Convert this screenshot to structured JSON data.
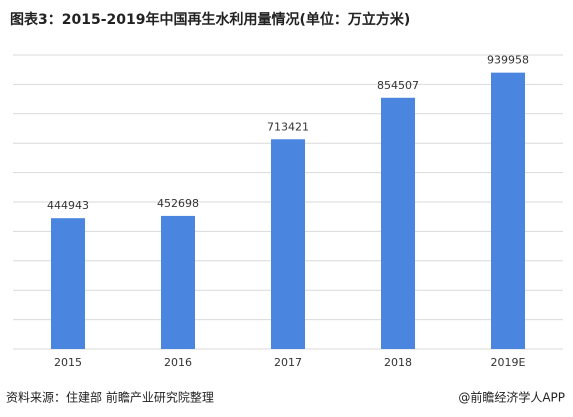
{
  "chart_data": {
    "type": "bar",
    "title": "图表3：2015-2019年中国再生水利用量情况(单位：万立方米)",
    "categories": [
      "2015",
      "2016",
      "2017",
      "2018",
      "2019E"
    ],
    "values": [
      444943,
      452698,
      713421,
      854507,
      939958
    ],
    "color": "#4a86e0",
    "ylim": [
      0,
      1000000
    ],
    "yticks": [
      0,
      100000,
      200000,
      300000,
      400000,
      500000,
      600000,
      700000,
      800000,
      900000,
      1000000
    ],
    "grid": true,
    "source": "资料来源：住建部 前瞻产业研究院整理",
    "watermark": "@前瞻经济学人APP"
  }
}
